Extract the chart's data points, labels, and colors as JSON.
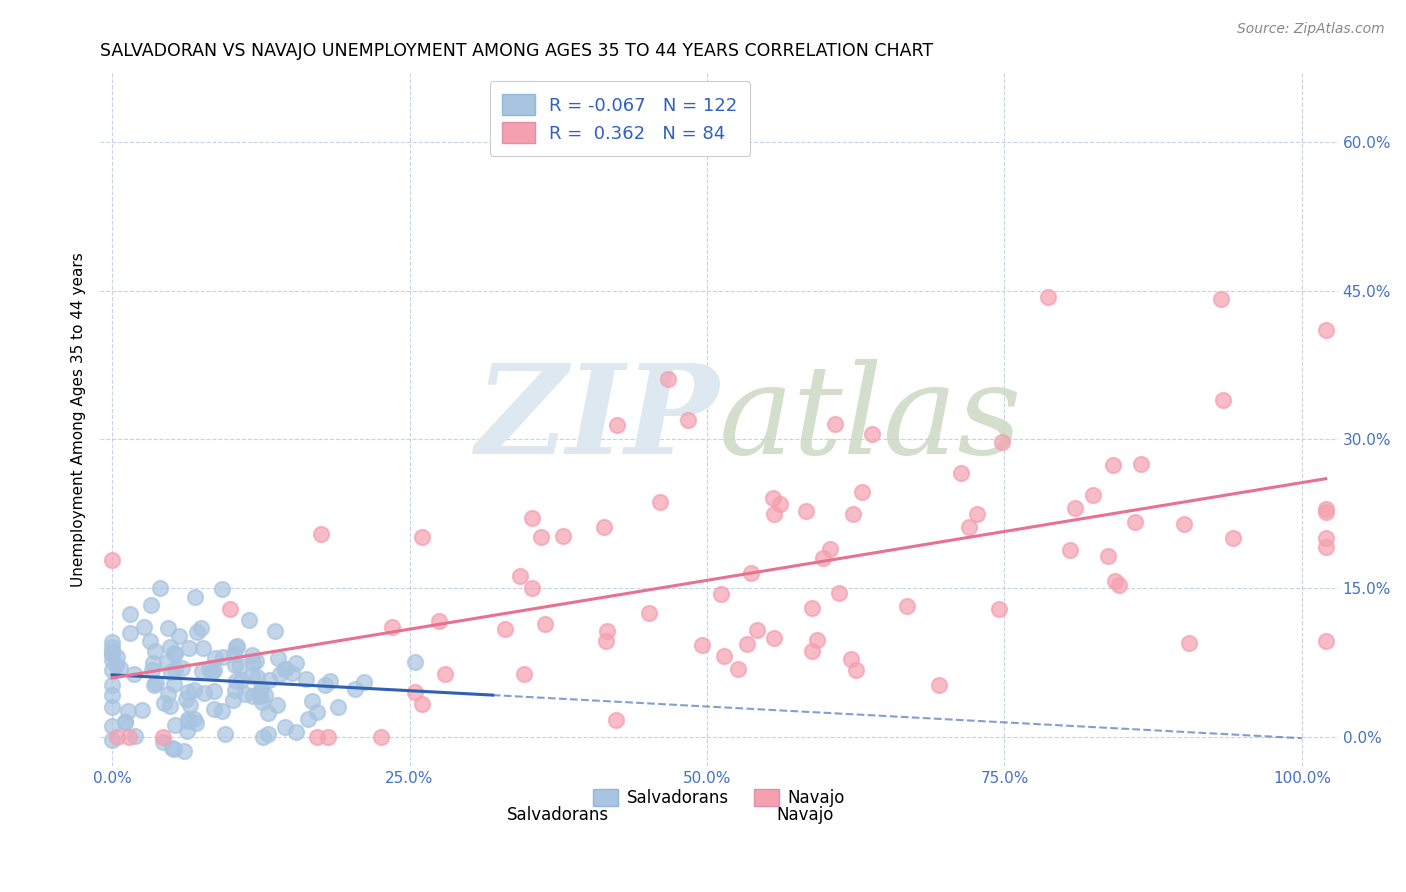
{
  "title": "SALVADORAN VS NAVAJO UNEMPLOYMENT AMONG AGES 35 TO 44 YEARS CORRELATION CHART",
  "source": "Source: ZipAtlas.com",
  "ylabel": "Unemployment Among Ages 35 to 44 years",
  "xlim": [
    -0.01,
    1.03
  ],
  "ylim": [
    -0.03,
    0.67
  ],
  "xticks": [
    0.0,
    0.25,
    0.5,
    0.75,
    1.0
  ],
  "xtick_labels": [
    "0.0%",
    "25.0%",
    "50.0%",
    "75.0%",
    "100.0%"
  ],
  "yticks": [
    0.0,
    0.15,
    0.3,
    0.45,
    0.6
  ],
  "ytick_labels": [
    "0.0%",
    "15.0%",
    "30.0%",
    "45.0%",
    "60.0%"
  ],
  "salvadoran_R": -0.067,
  "salvadoran_N": 122,
  "navajo_R": 0.362,
  "navajo_N": 84,
  "salvadoran_color": "#a8c4e0",
  "navajo_color": "#f4a0b0",
  "salvadoran_line_color": "#3060b0",
  "navajo_line_color": "#e87090",
  "watermark_color": "#dde8f0",
  "background_color": "#ffffff",
  "seed": 42
}
